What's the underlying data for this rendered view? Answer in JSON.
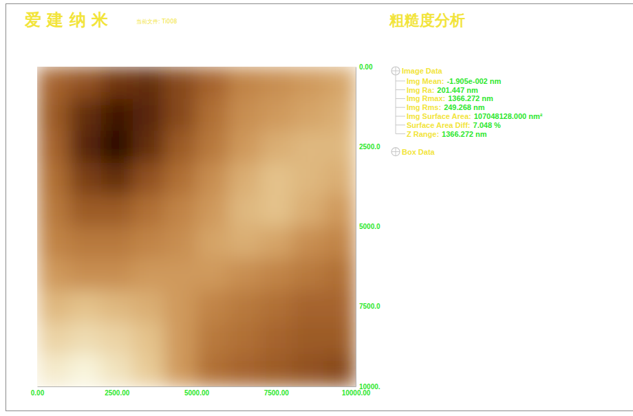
{
  "chart_data": {
    "type": "heatmap",
    "brand": "爱 建 纳 米",
    "file_label": "当前文件: Ti008",
    "title": "粗糙度分析",
    "xbins": [
      0,
      1000,
      2000,
      3000,
      4000,
      5000,
      6000,
      7000,
      8000,
      9000,
      10000
    ],
    "ybins": [
      0,
      1000,
      2000,
      3000,
      4000,
      5000,
      6000,
      7000,
      8000,
      9000,
      10000
    ],
    "z": [
      [
        600,
        500,
        350,
        300,
        450,
        600,
        750,
        800,
        850,
        900
      ],
      [
        550,
        300,
        150,
        250,
        450,
        650,
        800,
        850,
        900,
        950
      ],
      [
        600,
        250,
        60,
        300,
        550,
        700,
        850,
        950,
        1000,
        1000
      ],
      [
        650,
        400,
        300,
        500,
        650,
        800,
        950,
        1050,
        1000,
        950
      ],
      [
        700,
        550,
        550,
        650,
        750,
        850,
        1000,
        1050,
        950,
        850
      ],
      [
        750,
        700,
        700,
        750,
        800,
        900,
        950,
        900,
        800,
        750
      ],
      [
        850,
        800,
        800,
        850,
        850,
        850,
        800,
        750,
        700,
        650
      ],
      [
        1000,
        1050,
        1000,
        950,
        850,
        750,
        700,
        650,
        600,
        600
      ],
      [
        1150,
        1200,
        1150,
        1050,
        850,
        700,
        650,
        600,
        550,
        550
      ],
      [
        1300,
        1366,
        1250,
        1100,
        850,
        650,
        600,
        550,
        500,
        450
      ]
    ],
    "xlim": [
      0,
      10000
    ],
    "ylim": [
      0,
      10000
    ],
    "xticks": [
      {
        "value": 0,
        "label": "0.00"
      },
      {
        "value": 2500,
        "label": "2500.00"
      },
      {
        "value": 5000,
        "label": "5000.00"
      },
      {
        "value": 7500,
        "label": "7500.00"
      },
      {
        "value": 10000,
        "label": "10000.00"
      }
    ],
    "yticks": [
      {
        "value": 0,
        "label": "0.00"
      },
      {
        "value": 2500,
        "label": "2500.0"
      },
      {
        "value": 5000,
        "label": "5000.0"
      },
      {
        "value": 7500,
        "label": "7500.0"
      },
      {
        "value": 10000,
        "label": "10000."
      }
    ],
    "tree": {
      "root": "Image Data",
      "items": [
        {
          "label": "Img Mean:",
          "value": "-1.905e-002 nm"
        },
        {
          "label": "Img Ra:",
          "value": "201.447 nm"
        },
        {
          "label": "Img Rmax:",
          "value": "1366.272 nm"
        },
        {
          "label": "Img Rms:",
          "value": "249.268 nm"
        },
        {
          "label": "Img Surface Area:",
          "value": "107048128.000 nm²"
        },
        {
          "label": "Surface Area Diff:",
          "value": "7.048 %"
        },
        {
          "label": "Z Range:",
          "value": "1366.272 nm"
        }
      ],
      "footer": "Box Data"
    }
  }
}
